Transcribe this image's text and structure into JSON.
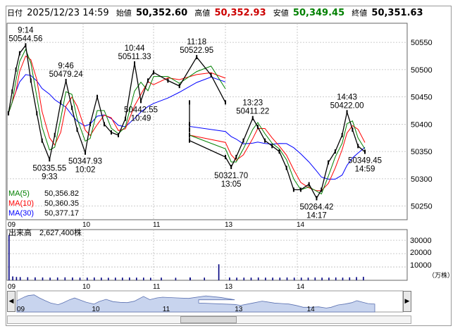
{
  "header": {
    "date_label": "日付",
    "datetime": "2025/12/23 14:59",
    "open_label": "始値",
    "open": "50,352.60",
    "high_label": "高値",
    "high": "50,352.93",
    "low_label": "安値",
    "low": "50,349.45",
    "close_label": "終値",
    "close": "50,351.63"
  },
  "colors": {
    "price": "#000000",
    "ma5": "#008000",
    "ma10": "#ff0000",
    "ma30": "#0000ff",
    "high": "#cc0000",
    "low": "#008000",
    "volume": "#000080"
  },
  "legend": [
    {
      "name": "MA(5)",
      "value": "50,356.82",
      "color": "#008000"
    },
    {
      "name": "MA(10)",
      "value": "50,360.35",
      "color": "#ff0000"
    },
    {
      "name": "MA(30)",
      "value": "50,377.17",
      "color": "#0000ff"
    }
  ],
  "volume_panel": {
    "label": "出来高",
    "value": "2,627,400株",
    "unit": "（万株）",
    "ticks": [
      "30000",
      "20000",
      "10000"
    ]
  },
  "annotations": [
    {
      "value": "9:14",
      "t": 9.23,
      "p": 50544.56,
      "dir": "up",
      "line2": "50544.56"
    },
    {
      "value": "9:46",
      "t": 9.77,
      "p": 50479.24,
      "dir": "up",
      "line2": "50479.24"
    },
    {
      "value": "50335.55",
      "t": 9.55,
      "p": 50335.55,
      "dir": "down",
      "line2": "9:33"
    },
    {
      "value": "50347.93",
      "t": 10.03,
      "p": 50347.93,
      "dir": "down",
      "line2": "10:02"
    },
    {
      "value": "10:44",
      "t": 10.73,
      "p": 50511.33,
      "dir": "up",
      "line2": "50511.33"
    },
    {
      "value": "11:18",
      "t": 11.3,
      "p": 50522.95,
      "dir": "up",
      "line2": "50522.95"
    },
    {
      "value": "50442.55",
      "t": 10.82,
      "p": 50442.55,
      "dir": "down",
      "line2": "10:49"
    },
    {
      "value": "13:23",
      "t": 13.38,
      "p": 50411.22,
      "dir": "up",
      "line2": "50411.22"
    },
    {
      "value": "50321.70",
      "t": 13.08,
      "p": 50321.7,
      "dir": "down",
      "line2": "13:05"
    },
    {
      "value": "14:43",
      "t": 14.72,
      "p": 50422.0,
      "dir": "up",
      "line2": "50422.00"
    },
    {
      "value": "50264.42",
      "t": 14.28,
      "p": 50264.42,
      "dir": "down",
      "line2": "14:17"
    },
    {
      "value": "50349.45",
      "t": 14.98,
      "p": 50349.45,
      "dir": "down",
      "line2": "14:59"
    }
  ],
  "chart_data": {
    "type": "line",
    "title": "",
    "x_ticks": [
      "09",
      "10",
      "11",
      "13",
      "14"
    ],
    "y_ticks": [
      50550,
      50500,
      50450,
      50400,
      50350,
      50300,
      50250
    ],
    "ylim": [
      50225,
      50585
    ],
    "volume_ylim": [
      0,
      38000
    ],
    "session_breaks": [
      {
        "from": 11.5,
        "to": 12.5
      }
    ],
    "price_points": [
      [
        9.0,
        50420
      ],
      [
        9.05,
        50460
      ],
      [
        9.1,
        50500
      ],
      [
        9.15,
        50530
      ],
      [
        9.23,
        50544.56
      ],
      [
        9.3,
        50480
      ],
      [
        9.38,
        50420
      ],
      [
        9.45,
        50370
      ],
      [
        9.55,
        50335.55
      ],
      [
        9.62,
        50380
      ],
      [
        9.7,
        50440
      ],
      [
        9.77,
        50479.24
      ],
      [
        9.85,
        50430
      ],
      [
        9.92,
        50390
      ],
      [
        10.03,
        50347.93
      ],
      [
        10.1,
        50400
      ],
      [
        10.2,
        50450
      ],
      [
        10.3,
        50400
      ],
      [
        10.4,
        50385
      ],
      [
        10.5,
        50380
      ],
      [
        10.6,
        50410
      ],
      [
        10.73,
        50511.33
      ],
      [
        10.82,
        50442.55
      ],
      [
        10.92,
        50480
      ],
      [
        11.0,
        50495
      ],
      [
        11.1,
        50480
      ],
      [
        11.18,
        50470
      ],
      [
        11.3,
        50522.95
      ],
      [
        11.4,
        50490
      ],
      [
        11.5,
        50440
      ],
      [
        12.5,
        50440
      ],
      [
        12.6,
        50400
      ],
      [
        12.7,
        50380
      ],
      [
        12.8,
        50390
      ],
      [
        12.9,
        50370
      ],
      [
        13.0,
        50340
      ],
      [
        13.08,
        50321.7
      ],
      [
        13.15,
        50340
      ],
      [
        13.25,
        50370
      ],
      [
        13.38,
        50411.22
      ],
      [
        13.45,
        50395
      ],
      [
        13.55,
        50370
      ],
      [
        13.65,
        50360
      ],
      [
        13.75,
        50350
      ],
      [
        13.85,
        50320
      ],
      [
        13.95,
        50280
      ],
      [
        14.05,
        50280
      ],
      [
        14.17,
        50290
      ],
      [
        14.28,
        50264.42
      ],
      [
        14.35,
        50280
      ],
      [
        14.45,
        50330
      ],
      [
        14.55,
        50350
      ],
      [
        14.65,
        50380
      ],
      [
        14.72,
        50422.0
      ],
      [
        14.8,
        50390
      ],
      [
        14.88,
        50360
      ],
      [
        14.98,
        50349.45
      ]
    ],
    "volume_bars": [
      [
        9.0,
        34000
      ],
      [
        9.05,
        2900
      ],
      [
        9.1,
        2500
      ],
      [
        9.15,
        2400
      ],
      [
        9.25,
        2300
      ],
      [
        9.35,
        2200
      ],
      [
        9.45,
        2100
      ],
      [
        9.55,
        2000
      ],
      [
        9.65,
        2100
      ],
      [
        9.75,
        2200
      ],
      [
        9.85,
        2100
      ],
      [
        9.95,
        2000
      ],
      [
        10.05,
        2000
      ],
      [
        10.15,
        2100
      ],
      [
        10.25,
        2000
      ],
      [
        10.35,
        1900
      ],
      [
        10.45,
        2000
      ],
      [
        10.55,
        2000
      ],
      [
        10.65,
        2100
      ],
      [
        10.75,
        2000
      ],
      [
        10.85,
        2000
      ],
      [
        10.95,
        1900
      ],
      [
        11.05,
        2000
      ],
      [
        11.15,
        1900
      ],
      [
        11.25,
        2000
      ],
      [
        11.35,
        2000
      ],
      [
        11.45,
        12000
      ],
      [
        12.55,
        2000
      ],
      [
        12.65,
        2000
      ],
      [
        12.75,
        2100
      ],
      [
        12.85,
        2000
      ],
      [
        12.95,
        2000
      ],
      [
        13.05,
        2100
      ],
      [
        13.15,
        2000
      ],
      [
        13.25,
        2000
      ],
      [
        13.35,
        2000
      ],
      [
        13.45,
        2100
      ],
      [
        13.55,
        2000
      ],
      [
        13.65,
        2000
      ],
      [
        13.75,
        2000
      ],
      [
        13.85,
        2100
      ],
      [
        13.95,
        2000
      ],
      [
        14.05,
        2000
      ],
      [
        14.15,
        2000
      ],
      [
        14.25,
        2100
      ],
      [
        14.35,
        2000
      ],
      [
        14.45,
        2000
      ],
      [
        14.55,
        2100
      ],
      [
        14.65,
        2000
      ],
      [
        14.75,
        2200
      ],
      [
        14.85,
        2400
      ],
      [
        14.95,
        2600
      ]
    ]
  }
}
